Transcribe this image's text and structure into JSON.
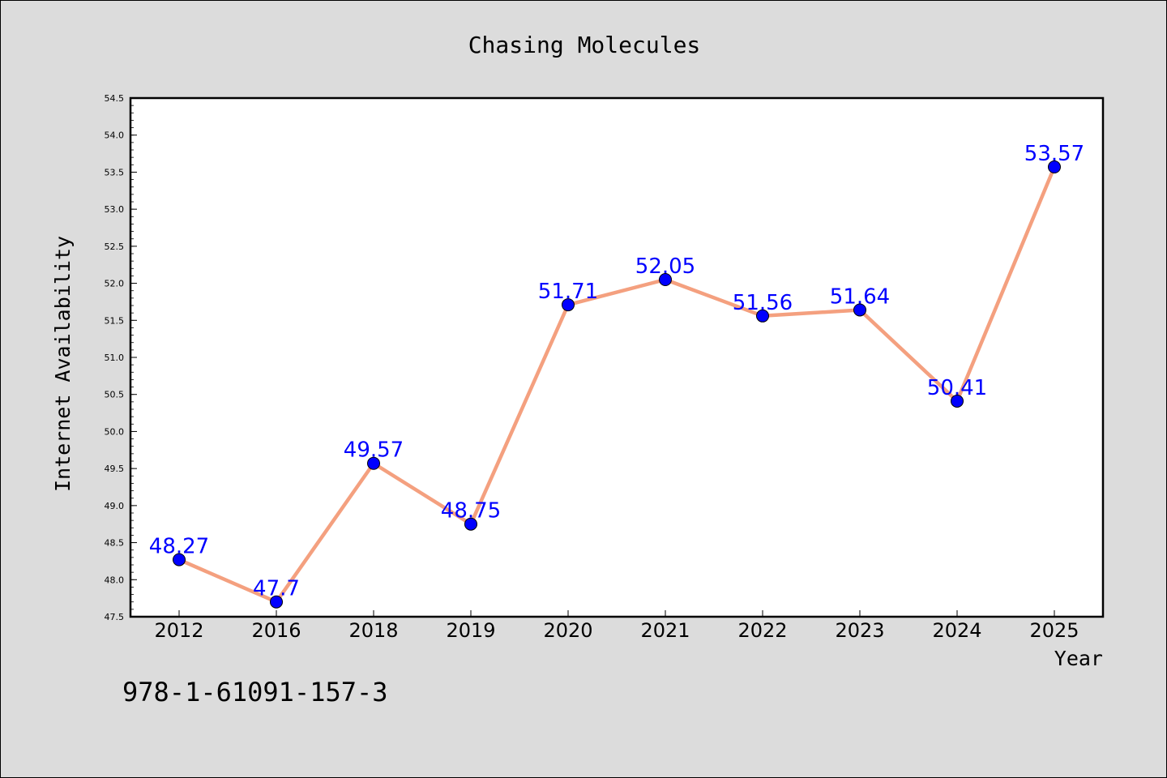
{
  "chart_data": {
    "type": "line",
    "title": "Chasing Molecules",
    "xlabel": "Year",
    "ylabel": "Internet Availability",
    "categories": [
      "2012",
      "2016",
      "2018",
      "2019",
      "2020",
      "2021",
      "2022",
      "2023",
      "2024",
      "2025"
    ],
    "series": [
      {
        "values": [
          48.27,
          47.7,
          49.57,
          48.75,
          51.71,
          52.05,
          51.56,
          51.64,
          50.41,
          53.57
        ],
        "labels": [
          "48.27",
          "47.7",
          "49.57",
          "48.75",
          "51.71",
          "52.05",
          "51.56",
          "51.64",
          "50.41",
          "53.57"
        ],
        "line_color": "#f4a07f",
        "marker_color": "#0000ff"
      }
    ],
    "ylim": [
      47.5,
      54.5
    ],
    "yticks": [
      "47.5",
      "48.0",
      "48.5",
      "49.0",
      "49.5",
      "50.0",
      "50.5",
      "51.0",
      "51.5",
      "52.0",
      "52.5",
      "53.0",
      "53.5",
      "54.0",
      "54.5"
    ],
    "grid": false,
    "legend": "none"
  },
  "footnote": "978-1-61091-157-3"
}
